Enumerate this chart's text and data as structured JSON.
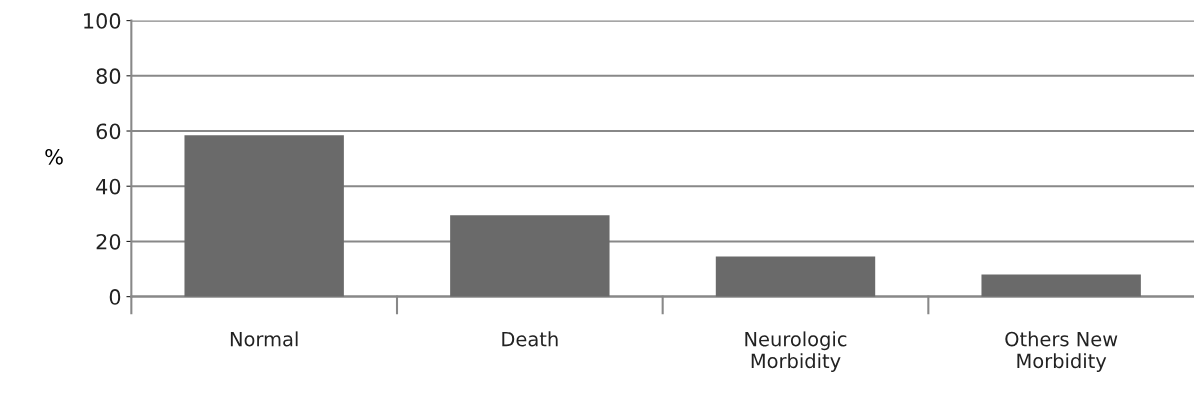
{
  "chart_data": {
    "type": "bar",
    "ylabel": "%",
    "categories": [
      "Normal",
      "Death",
      "Neurologic\nMorbidity",
      "Others New\nMorbidity"
    ],
    "values": [
      58.5,
      29.5,
      14.5,
      8
    ],
    "color": "#6a6a6a",
    "ylim": [
      0,
      100
    ],
    "yticks": [
      0,
      20,
      40,
      60,
      80,
      100
    ],
    "grid": "y"
  }
}
